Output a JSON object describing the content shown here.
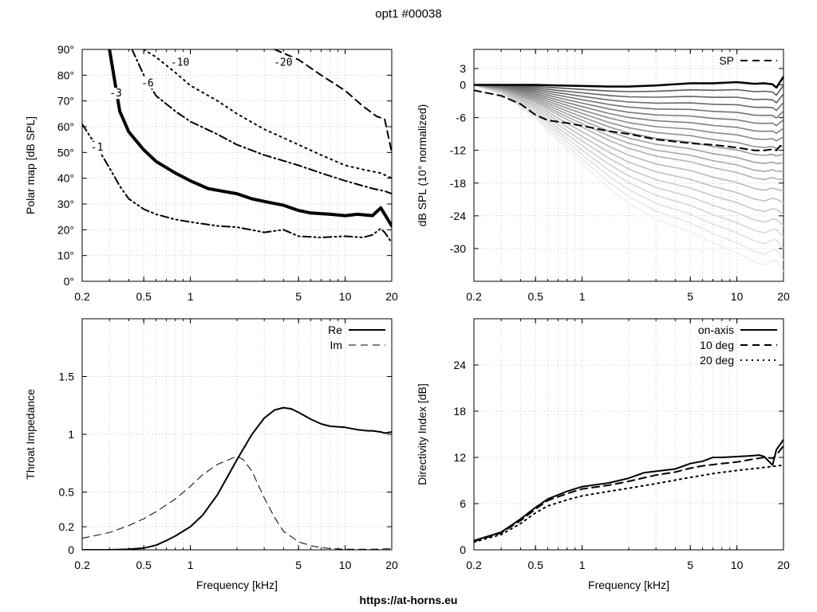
{
  "page": {
    "title": "opt1 #00038",
    "footer": "https://at-horns.eu"
  },
  "chart_data": [
    {
      "id": "polar",
      "type": "line",
      "subtype": "contour",
      "ylabel": "Polar map [dB SPL]",
      "xlabel": "",
      "xscale": "log",
      "xlim": [
        0.2,
        20
      ],
      "ylim": [
        0,
        90
      ],
      "xticks": [
        0.2,
        0.5,
        1,
        5,
        10,
        20
      ],
      "xtick_labels": [
        "0.2",
        "0.5",
        "1",
        "5",
        "10",
        "20"
      ],
      "yticks": [
        0,
        10,
        20,
        30,
        40,
        50,
        60,
        70,
        80,
        90
      ],
      "ytick_labels": [
        "0°",
        "10°",
        "20°",
        "30°",
        "40°",
        "50°",
        "60°",
        "70°",
        "80°",
        "90°"
      ],
      "grid": true,
      "series": [
        {
          "name": "-1",
          "style": "dash-dot-dot",
          "width": 2,
          "x": [
            0.2,
            0.25,
            0.3,
            0.35,
            0.4,
            0.5,
            0.6,
            0.8,
            1.0,
            1.5,
            2.0,
            3.0,
            4.0,
            5.0,
            7.0,
            10.0,
            13.0,
            15.0,
            17.0,
            18.0,
            20.0
          ],
          "y": [
            61,
            52,
            44,
            37,
            32,
            28,
            26,
            24,
            23,
            21.5,
            21,
            19,
            20,
            17.5,
            17,
            17.5,
            17,
            18,
            20.5,
            19,
            15
          ]
        },
        {
          "name": "-3",
          "style": "solid",
          "width": 4,
          "x": [
            0.3,
            0.35,
            0.4,
            0.5,
            0.6,
            0.8,
            1.0,
            1.3,
            1.6,
            2.0,
            2.5,
            3.0,
            4.0,
            5.0,
            6.0,
            8.0,
            10.0,
            12.0,
            15.0,
            17.0,
            20.0
          ],
          "y": [
            90,
            66,
            58,
            51,
            46.5,
            42,
            39,
            36,
            35,
            34,
            32,
            31,
            29.5,
            27.5,
            26.5,
            26,
            25.5,
            26,
            25.5,
            28.5,
            21.5
          ]
        },
        {
          "name": "-6",
          "style": "dash-dot",
          "width": 2,
          "x": [
            0.42,
            0.5,
            0.6,
            0.8,
            1.0,
            1.5,
            2.0,
            3.0,
            5.0,
            7.0,
            10.0,
            15.0,
            18.0,
            20.0
          ],
          "y": [
            90,
            80,
            72,
            66,
            62,
            57,
            53,
            49,
            45,
            42,
            39,
            36,
            35,
            34
          ]
        },
        {
          "name": "-10",
          "style": "dotted",
          "width": 2,
          "x": [
            0.5,
            0.6,
            0.8,
            1.0,
            1.5,
            2.0,
            3.0,
            5.0,
            7.0,
            10.0,
            14.0,
            17.0,
            20.0
          ],
          "y": [
            90,
            87,
            81,
            76,
            70,
            65,
            59,
            53,
            49,
            45,
            43,
            42,
            40
          ]
        },
        {
          "name": "-20",
          "style": "dashed",
          "width": 2,
          "x": [
            3.5,
            5.0,
            7.0,
            10.0,
            13.0,
            16.0,
            18.0,
            20.0
          ],
          "y": [
            90,
            86,
            80,
            74,
            68,
            64,
            63,
            50
          ]
        }
      ],
      "annotations": [
        {
          "text": "-3",
          "x": 0.33,
          "y": 72
        },
        {
          "text": "-6",
          "x": 0.53,
          "y": 76
        },
        {
          "text": "-10",
          "x": 0.82,
          "y": 84
        },
        {
          "text": "-20",
          "x": 3.8,
          "y": 84
        },
        {
          "text": "-1",
          "x": 0.25,
          "y": 51
        }
      ]
    },
    {
      "id": "spl",
      "type": "line",
      "ylabel": "dB SPL (10° normalized)",
      "xlabel": "",
      "xscale": "log",
      "xlim": [
        0.2,
        20
      ],
      "ylim": [
        -36,
        6.5
      ],
      "xticks": [
        0.2,
        0.5,
        1,
        5,
        10,
        20
      ],
      "xtick_labels": [
        "0.2",
        "0.5",
        "1",
        "5",
        "10",
        "20"
      ],
      "yticks": [
        3,
        0,
        -6,
        -12,
        -18,
        -24,
        -30
      ],
      "ytick_labels": [
        "3",
        "0",
        "-6",
        "-12",
        "-18",
        "-24",
        "-30"
      ],
      "grid": true,
      "legend": {
        "position": "top-right",
        "entries": [
          "SP"
        ]
      },
      "base_x": [
        0.2,
        0.3,
        0.5,
        0.7,
        1.0,
        1.5,
        2.0,
        3.0,
        5.0,
        7.0,
        10.0,
        13.0,
        15.0,
        17.0,
        18.0,
        20.0
      ],
      "base_y": [
        0,
        0,
        0,
        -0.1,
        -0.2,
        -0.3,
        -0.3,
        -0.1,
        0.3,
        0.3,
        0.5,
        0.2,
        0.3,
        0.1,
        -0.5,
        1.5
      ],
      "fan_x": [
        0.2,
        0.3,
        0.5,
        0.7,
        1.0,
        1.5,
        2.0,
        3.0,
        5.0,
        7.0,
        10.0,
        13.0,
        15.0,
        17.0,
        18.0,
        20.0
      ],
      "fan_shape": [
        0,
        0.05,
        0.18,
        0.3,
        0.42,
        0.55,
        0.63,
        0.72,
        0.8,
        0.86,
        0.92,
        0.96,
        0.98,
        0.95,
        0.93,
        1.05
      ],
      "fan_drops": [
        -1.5,
        -3,
        -4.5,
        -6,
        -7.5,
        -9,
        -10.5,
        -12,
        -13.5,
        -15,
        -16.5,
        -18,
        -20,
        -22,
        -24,
        -26,
        -28,
        -30,
        -32,
        -34
      ],
      "fan_lowend_weight": [
        0,
        0,
        0,
        0,
        0,
        0,
        0,
        0,
        0,
        0.05,
        0.08,
        0.1,
        0.12,
        0.15,
        0.18,
        0.2,
        0.22,
        0.25,
        0.28,
        0.3
      ],
      "sp_series": {
        "name": "SP",
        "x": [
          0.2,
          0.3,
          0.4,
          0.5,
          0.6,
          0.8,
          1.0,
          1.5,
          2.0,
          3.0,
          5.0,
          7.0,
          10.0,
          13.0,
          15.0,
          17.0,
          18.0,
          20.0
        ],
        "y": [
          -1,
          -2,
          -3.5,
          -5.5,
          -6.5,
          -7,
          -7.5,
          -8.5,
          -9,
          -10,
          -10.7,
          -11,
          -11.5,
          -12,
          -12,
          -11.8,
          -12,
          -10.5
        ]
      }
    },
    {
      "id": "impedance",
      "type": "line",
      "ylabel": "Throat Impedance",
      "xlabel": "Frequency [kHz]",
      "xscale": "log",
      "xlim": [
        0.2,
        20
      ],
      "ylim": [
        0,
        2
      ],
      "xticks": [
        0.2,
        0.5,
        1,
        5,
        10,
        20
      ],
      "xtick_labels": [
        "0.2",
        "0.5",
        "1",
        "5",
        "10",
        "20"
      ],
      "yticks": [
        0,
        0.2,
        0.5,
        1,
        1.5
      ],
      "ytick_labels": [
        "0",
        "0.2",
        "0.5",
        "1",
        "1.5"
      ],
      "grid": true,
      "legend": {
        "position": "top-right",
        "entries": [
          "Re",
          "Im"
        ]
      },
      "series": [
        {
          "name": "Re",
          "style": "solid",
          "width": 2,
          "x": [
            0.2,
            0.3,
            0.4,
            0.5,
            0.6,
            0.7,
            0.8,
            1.0,
            1.2,
            1.5,
            2.0,
            2.5,
            3.0,
            3.5,
            4.0,
            4.5,
            5.0,
            6.0,
            7.0,
            8.0,
            10.0,
            12.0,
            14.0,
            15.0,
            17.0,
            18.0,
            20.0
          ],
          "y": [
            0,
            0,
            0.005,
            0.015,
            0.04,
            0.08,
            0.12,
            0.2,
            0.3,
            0.48,
            0.78,
            1.0,
            1.14,
            1.21,
            1.23,
            1.22,
            1.19,
            1.13,
            1.09,
            1.07,
            1.06,
            1.04,
            1.03,
            1.03,
            1.02,
            1.01,
            1.02
          ]
        },
        {
          "name": "Im",
          "style": "dashed",
          "width": 1,
          "x": [
            0.2,
            0.3,
            0.4,
            0.5,
            0.6,
            0.8,
            1.0,
            1.2,
            1.5,
            2.0,
            2.2,
            2.5,
            3.0,
            3.5,
            4.0,
            5.0,
            6.0,
            7.0,
            8.0,
            10.0,
            15.0,
            20.0
          ],
          "y": [
            0.1,
            0.15,
            0.21,
            0.27,
            0.33,
            0.44,
            0.55,
            0.65,
            0.74,
            0.81,
            0.78,
            0.68,
            0.45,
            0.28,
            0.16,
            0.07,
            0.035,
            0.02,
            0.01,
            0.005,
            0.005,
            0.01
          ]
        }
      ]
    },
    {
      "id": "di",
      "type": "line",
      "ylabel": "Directivity Index [dB]",
      "xlabel": "Frequency [kHz]",
      "xscale": "log",
      "xlim": [
        0.2,
        20
      ],
      "ylim": [
        0,
        30
      ],
      "xticks": [
        0.2,
        0.5,
        1,
        5,
        10,
        20
      ],
      "xtick_labels": [
        "0.2",
        "0.5",
        "1",
        "5",
        "10",
        "20"
      ],
      "yticks": [
        0,
        6,
        12,
        18,
        24
      ],
      "ytick_labels": [
        "0",
        "6",
        "12",
        "18",
        "24"
      ],
      "grid": true,
      "legend": {
        "position": "top-right",
        "entries": [
          "on-axis",
          "10 deg",
          "20 deg"
        ]
      },
      "series": [
        {
          "name": "on-axis",
          "style": "solid",
          "width": 2,
          "x": [
            0.2,
            0.3,
            0.4,
            0.5,
            0.6,
            0.8,
            1.0,
            1.5,
            2.0,
            2.5,
            3.0,
            4.0,
            5.0,
            6.0,
            7.0,
            8.0,
            10.0,
            12.0,
            14.0,
            15.0,
            17.0,
            18.0,
            20.0
          ],
          "y": [
            1.2,
            2.3,
            4.0,
            5.5,
            6.6,
            7.6,
            8.2,
            8.7,
            9.3,
            10.0,
            10.2,
            10.5,
            11.2,
            11.5,
            12.0,
            12.0,
            12.1,
            12.2,
            12.3,
            12.1,
            11.0,
            13.0,
            14.3
          ]
        },
        {
          "name": "10 deg",
          "style": "dashed",
          "width": 2,
          "x": [
            0.2,
            0.3,
            0.4,
            0.5,
            0.6,
            0.8,
            1.0,
            1.5,
            2.0,
            3.0,
            4.0,
            5.0,
            6.0,
            8.0,
            10.0,
            13.0,
            15.0,
            17.0,
            18.0,
            20.0
          ],
          "y": [
            1.1,
            2.2,
            3.8,
            5.3,
            6.4,
            7.3,
            7.9,
            8.4,
            8.9,
            9.7,
            10.1,
            10.6,
            10.9,
            11.2,
            11.4,
            11.8,
            12.0,
            11.9,
            12.3,
            13.5
          ]
        },
        {
          "name": "20 deg",
          "style": "dotted",
          "width": 2,
          "x": [
            0.2,
            0.3,
            0.4,
            0.5,
            0.6,
            0.8,
            1.0,
            1.5,
            2.0,
            3.0,
            5.0,
            7.0,
            10.0,
            15.0,
            20.0
          ],
          "y": [
            1.0,
            2.0,
            3.4,
            4.8,
            5.7,
            6.5,
            7.0,
            7.6,
            8.0,
            8.6,
            9.4,
            9.9,
            10.3,
            10.7,
            11.0
          ]
        }
      ]
    }
  ]
}
